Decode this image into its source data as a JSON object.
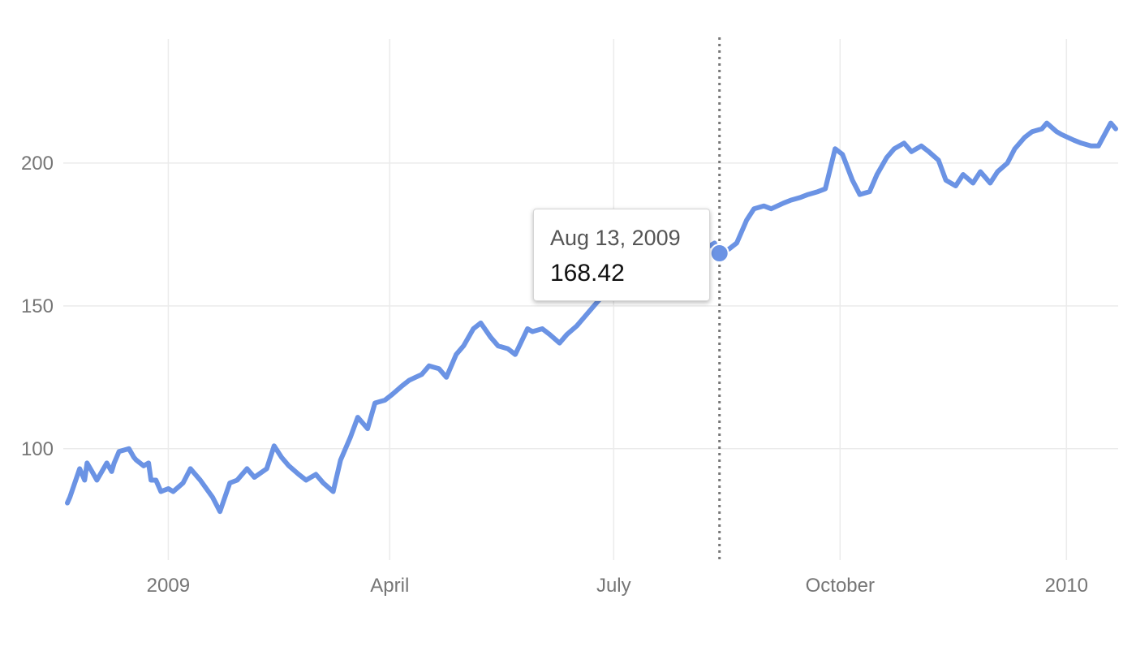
{
  "chart_data": {
    "type": "line",
    "title": "",
    "xlabel": "",
    "ylabel": "",
    "grid": true,
    "legend": "none",
    "x_ticks": [
      {
        "label": "2009",
        "date": "2009-01-01"
      },
      {
        "label": "April",
        "date": "2009-04-01"
      },
      {
        "label": "July",
        "date": "2009-07-01"
      },
      {
        "label": "October",
        "date": "2009-10-01"
      },
      {
        "label": "2010",
        "date": "2010-01-01"
      }
    ],
    "y_ticks": [
      100,
      150,
      200
    ],
    "xlim": [
      "2008-11-20",
      "2010-01-22"
    ],
    "ylim": [
      61,
      248
    ],
    "colors": {
      "series": "#6b93e4",
      "grid": "#ebebeb",
      "crosshair": "#777777"
    },
    "series": [
      {
        "x": [
          "2008-11-21",
          "2008-11-22",
          "2008-11-26",
          "2008-11-28",
          "2008-11-29",
          "2008-12-01",
          "2008-12-03",
          "2008-12-07",
          "2008-12-09",
          "2008-12-10",
          "2008-12-12",
          "2008-12-16",
          "2008-12-18",
          "2008-12-19",
          "2008-12-22",
          "2008-12-24",
          "2008-12-25",
          "2008-12-27",
          "2008-12-29",
          "2009-01-01",
          "2009-01-03",
          "2009-01-07",
          "2009-01-10",
          "2009-01-14",
          "2009-01-19",
          "2009-01-22",
          "2009-01-26",
          "2009-01-29",
          "2009-02-02",
          "2009-02-05",
          "2009-02-10",
          "2009-02-13",
          "2009-02-16",
          "2009-02-19",
          "2009-02-23",
          "2009-02-26",
          "2009-03-02",
          "2009-03-05",
          "2009-03-09",
          "2009-03-12",
          "2009-03-16",
          "2009-03-19",
          "2009-03-23",
          "2009-03-26",
          "2009-03-30",
          "2009-04-02",
          "2009-04-06",
          "2009-04-09",
          "2009-04-14",
          "2009-04-17",
          "2009-04-21",
          "2009-04-24",
          "2009-04-28",
          "2009-05-01",
          "2009-05-05",
          "2009-05-08",
          "2009-05-12",
          "2009-05-15",
          "2009-05-19",
          "2009-05-22",
          "2009-05-27",
          "2009-05-29",
          "2009-06-02",
          "2009-06-05",
          "2009-06-09",
          "2009-06-12",
          "2009-06-16",
          "2009-06-19",
          "2009-06-23",
          "2009-06-26",
          "2009-06-30",
          "2009-07-03",
          "2009-07-07",
          "2009-07-10",
          "2009-07-14",
          "2009-07-17",
          "2009-07-21",
          "2009-07-24",
          "2009-07-28",
          "2009-07-31",
          "2009-08-04",
          "2009-08-07",
          "2009-08-11",
          "2009-08-13",
          "2009-08-17",
          "2009-08-20",
          "2009-08-24",
          "2009-08-27",
          "2009-08-31",
          "2009-09-03",
          "2009-09-08",
          "2009-09-11",
          "2009-09-15",
          "2009-09-18",
          "2009-09-22",
          "2009-09-25",
          "2009-09-29",
          "2009-10-02",
          "2009-10-06",
          "2009-10-09",
          "2009-10-13",
          "2009-10-16",
          "2009-10-20",
          "2009-10-23",
          "2009-10-27",
          "2009-10-30",
          "2009-11-03",
          "2009-11-06",
          "2009-11-10",
          "2009-11-13",
          "2009-11-17",
          "2009-11-20",
          "2009-11-24",
          "2009-11-27",
          "2009-12-01",
          "2009-12-04",
          "2009-12-08",
          "2009-12-11",
          "2009-12-15",
          "2009-12-18",
          "2009-12-22",
          "2009-12-24",
          "2009-12-28",
          "2009-12-30",
          "2010-01-04",
          "2010-01-07",
          "2010-01-11",
          "2010-01-14",
          "2010-01-19",
          "2010-01-21"
        ],
        "values": [
          81,
          83,
          93,
          89,
          95,
          92,
          89,
          95,
          92,
          95,
          99,
          100,
          97,
          96,
          94,
          95,
          89,
          89,
          85,
          86,
          85,
          88,
          93,
          89,
          83,
          78,
          88,
          89,
          93,
          90,
          93,
          101,
          97,
          94,
          91,
          89,
          91,
          88,
          85,
          96,
          104,
          111,
          107,
          116,
          117,
          119,
          122,
          124,
          126,
          129,
          128,
          125,
          133,
          136,
          142,
          144,
          139,
          136,
          135,
          133,
          142,
          141,
          142,
          140,
          137,
          140,
          143,
          146,
          150,
          153,
          158,
          161,
          163,
          165,
          167,
          168,
          166,
          164,
          165,
          168,
          168,
          170,
          172,
          168,
          170,
          172,
          180,
          184,
          185,
          184,
          186,
          187,
          188,
          189,
          190,
          191,
          205,
          203,
          194,
          189,
          190,
          196,
          202,
          205,
          207,
          204,
          206,
          204,
          201,
          194,
          192,
          196,
          193,
          197,
          193,
          197,
          200,
          205,
          209,
          211,
          212,
          214,
          211,
          210,
          208,
          207,
          206,
          206,
          214,
          212
        ],
        "connect": true
      }
    ],
    "tooltip": {
      "date_label": "Aug 13, 2009",
      "value_label": "168.42",
      "x": "2009-08-13",
      "value": 168.42
    }
  }
}
